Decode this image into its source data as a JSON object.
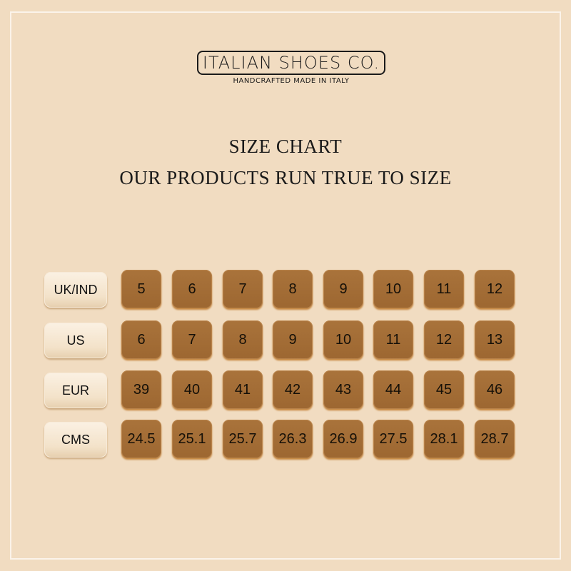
{
  "brand": {
    "name": "ITALIAN SHOES CO.",
    "tagline": "HANDCRAFTED MADE IN ITALY"
  },
  "heading": {
    "title": "SIZE CHART",
    "subtitle": "OUR PRODUCTS RUN TRUE TO SIZE"
  },
  "colors": {
    "background": "#f1dcc1",
    "tile": "#a36d36",
    "label_tile": "#f6e8d4"
  },
  "rows": [
    {
      "label": "UK/IND",
      "values": [
        "5",
        "6",
        "7",
        "8",
        "9",
        "10",
        "11",
        "12"
      ]
    },
    {
      "label": "US",
      "values": [
        "6",
        "7",
        "8",
        "9",
        "10",
        "11",
        "12",
        "13"
      ]
    },
    {
      "label": "EUR",
      "values": [
        "39",
        "40",
        "41",
        "42",
        "43",
        "44",
        "45",
        "46"
      ]
    },
    {
      "label": "CMS",
      "values": [
        "24.5",
        "25.1",
        "25.7",
        "26.3",
        "26.9",
        "27.5",
        "28.1",
        "28.7"
      ]
    }
  ]
}
